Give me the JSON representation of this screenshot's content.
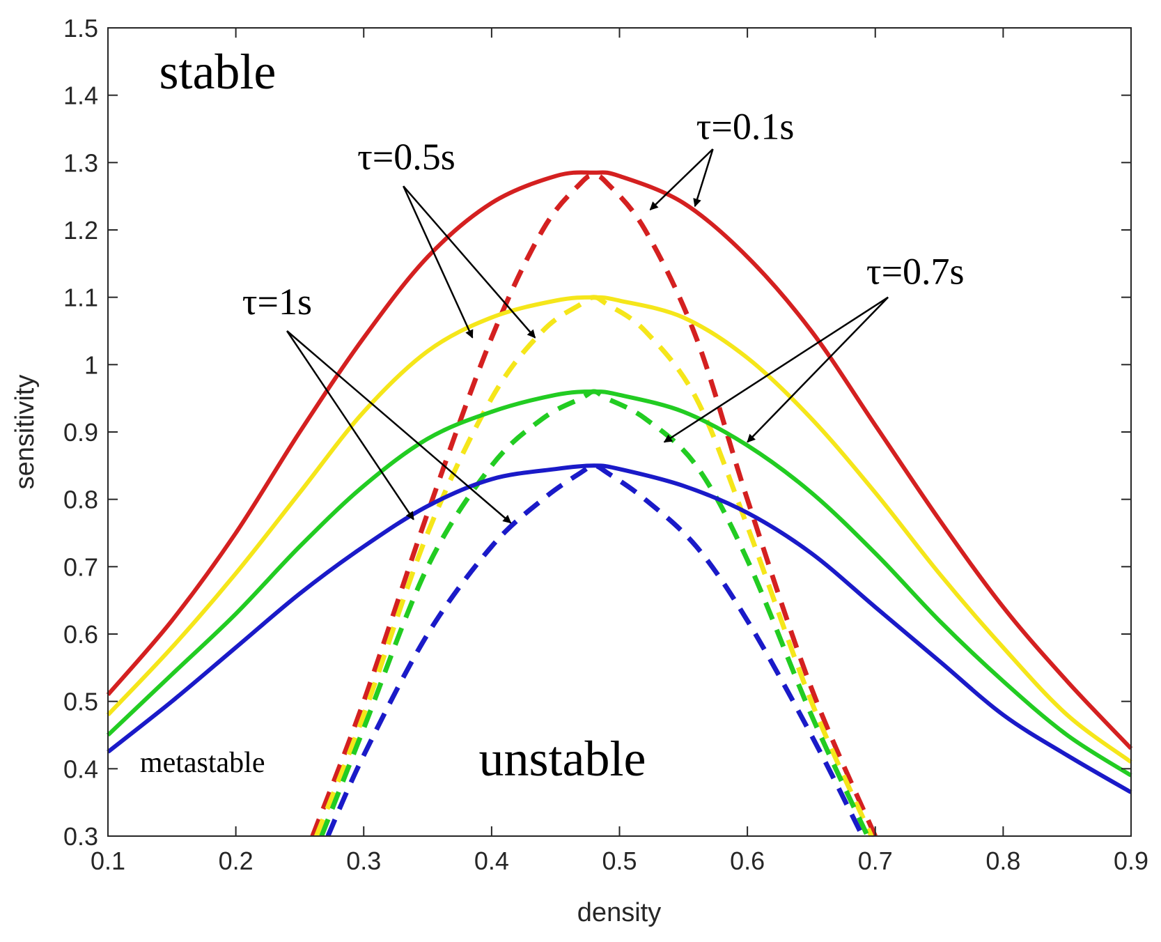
{
  "chart_data": {
    "type": "line",
    "xlabel": "density",
    "ylabel": "sensitivity",
    "xlim": [
      0.1,
      0.9
    ],
    "ylim": [
      0.3,
      1.5
    ],
    "xticks": [
      0.1,
      0.2,
      0.3,
      0.4,
      0.5,
      0.6,
      0.7,
      0.8,
      0.9
    ],
    "yticks": [
      0.3,
      0.4,
      0.5,
      0.6,
      0.7,
      0.8,
      0.9,
      1,
      1.1,
      1.2,
      1.3,
      1.4,
      1.5
    ],
    "xtick_labels": [
      "0.1",
      "0.2",
      "0.3",
      "0.4",
      "0.5",
      "0.6",
      "0.7",
      "0.8",
      "0.9"
    ],
    "ytick_labels": [
      "0.3",
      "0.4",
      "0.5",
      "0.6",
      "0.7",
      "0.8",
      "0.9",
      "1",
      "1.1",
      "1.2",
      "1.3",
      "1.4",
      "1.5"
    ],
    "series": [
      {
        "name": "τ=0.1s",
        "color": "#d42020",
        "solid": {
          "x": [
            0.1,
            0.15,
            0.2,
            0.25,
            0.3,
            0.35,
            0.4,
            0.45,
            0.48,
            0.5,
            0.55,
            0.6,
            0.65,
            0.7,
            0.75,
            0.8,
            0.85,
            0.9
          ],
          "y": [
            0.51,
            0.62,
            0.75,
            0.9,
            1.04,
            1.16,
            1.24,
            1.28,
            1.285,
            1.28,
            1.24,
            1.16,
            1.05,
            0.91,
            0.77,
            0.64,
            0.53,
            0.43
          ]
        },
        "dashed": {
          "x": [
            0.26,
            0.3,
            0.35,
            0.4,
            0.44,
            0.47,
            0.48,
            0.49,
            0.52,
            0.56,
            0.6,
            0.65,
            0.7
          ],
          "y": [
            0.3,
            0.5,
            0.78,
            1.04,
            1.2,
            1.27,
            1.28,
            1.27,
            1.2,
            1.04,
            0.8,
            0.52,
            0.3
          ]
        }
      },
      {
        "name": "τ=0.5s",
        "color": "#f5e61a",
        "solid": {
          "x": [
            0.1,
            0.15,
            0.2,
            0.25,
            0.3,
            0.35,
            0.4,
            0.45,
            0.48,
            0.5,
            0.55,
            0.6,
            0.65,
            0.7,
            0.75,
            0.8,
            0.85,
            0.9
          ],
          "y": [
            0.48,
            0.58,
            0.69,
            0.81,
            0.93,
            1.02,
            1.07,
            1.095,
            1.1,
            1.095,
            1.07,
            1.01,
            0.92,
            0.81,
            0.69,
            0.58,
            0.48,
            0.41
          ]
        },
        "dashed": {
          "x": [
            0.263,
            0.3,
            0.35,
            0.4,
            0.44,
            0.47,
            0.48,
            0.49,
            0.52,
            0.56,
            0.6,
            0.65,
            0.697
          ],
          "y": [
            0.3,
            0.48,
            0.75,
            0.95,
            1.05,
            1.09,
            1.1,
            1.09,
            1.05,
            0.95,
            0.76,
            0.5,
            0.3
          ]
        }
      },
      {
        "name": "τ=0.7s",
        "color": "#22cc22",
        "solid": {
          "x": [
            0.1,
            0.15,
            0.2,
            0.25,
            0.3,
            0.35,
            0.4,
            0.45,
            0.48,
            0.5,
            0.55,
            0.6,
            0.65,
            0.7,
            0.75,
            0.8,
            0.85,
            0.9
          ],
          "y": [
            0.45,
            0.54,
            0.63,
            0.73,
            0.82,
            0.89,
            0.93,
            0.955,
            0.96,
            0.955,
            0.93,
            0.88,
            0.81,
            0.72,
            0.62,
            0.53,
            0.45,
            0.39
          ]
        },
        "dashed": {
          "x": [
            0.267,
            0.3,
            0.35,
            0.4,
            0.44,
            0.47,
            0.48,
            0.49,
            0.52,
            0.56,
            0.6,
            0.65,
            0.694
          ],
          "y": [
            0.3,
            0.46,
            0.7,
            0.85,
            0.92,
            0.95,
            0.96,
            0.95,
            0.92,
            0.85,
            0.71,
            0.48,
            0.3
          ]
        }
      },
      {
        "name": "τ=1s",
        "color": "#1a1ac8",
        "solid": {
          "x": [
            0.1,
            0.15,
            0.2,
            0.25,
            0.3,
            0.35,
            0.4,
            0.45,
            0.48,
            0.5,
            0.55,
            0.6,
            0.65,
            0.7,
            0.75,
            0.8,
            0.85,
            0.9
          ],
          "y": [
            0.425,
            0.5,
            0.58,
            0.66,
            0.73,
            0.79,
            0.83,
            0.845,
            0.85,
            0.845,
            0.82,
            0.78,
            0.72,
            0.64,
            0.56,
            0.48,
            0.42,
            0.365
          ]
        },
        "dashed": {
          "x": [
            0.272,
            0.3,
            0.35,
            0.4,
            0.44,
            0.47,
            0.48,
            0.49,
            0.52,
            0.56,
            0.6,
            0.65,
            0.69
          ],
          "y": [
            0.3,
            0.42,
            0.6,
            0.73,
            0.8,
            0.84,
            0.85,
            0.84,
            0.8,
            0.73,
            0.62,
            0.45,
            0.3
          ]
        }
      }
    ],
    "annotations": [
      {
        "text": "stable",
        "x": 0.14,
        "y": 1.41,
        "size": 72
      },
      {
        "text": "unstable",
        "x": 0.39,
        "y": 0.39,
        "size": 72
      },
      {
        "text": "metastable",
        "x": 0.125,
        "y": 0.395,
        "size": 42
      },
      {
        "text": "τ=0.1s",
        "x": 0.56,
        "y": 1.335,
        "size": 54
      },
      {
        "text": "τ=0.5s",
        "x": 0.295,
        "y": 1.29,
        "size": 54
      },
      {
        "text": "τ=0.7s",
        "x": 0.693,
        "y": 1.12,
        "size": 54
      },
      {
        "text": "τ=1s",
        "x": 0.205,
        "y": 1.075,
        "size": 54
      }
    ],
    "arrows": [
      {
        "from": [
          0.573,
          1.32
        ],
        "to": [
          0.524,
          1.23
        ]
      },
      {
        "from": [
          0.573,
          1.32
        ],
        "to": [
          0.559,
          1.235
        ]
      },
      {
        "from": [
          0.331,
          1.265
        ],
        "to": [
          0.385,
          1.04
        ]
      },
      {
        "from": [
          0.331,
          1.265
        ],
        "to": [
          0.434,
          1.04
        ]
      },
      {
        "from": [
          0.71,
          1.1
        ],
        "to": [
          0.535,
          0.885
        ]
      },
      {
        "from": [
          0.71,
          1.1
        ],
        "to": [
          0.6,
          0.885
        ]
      },
      {
        "from": [
          0.24,
          1.05
        ],
        "to": [
          0.339,
          0.77
        ]
      },
      {
        "from": [
          0.24,
          1.05
        ],
        "to": [
          0.415,
          0.765
        ]
      }
    ]
  }
}
